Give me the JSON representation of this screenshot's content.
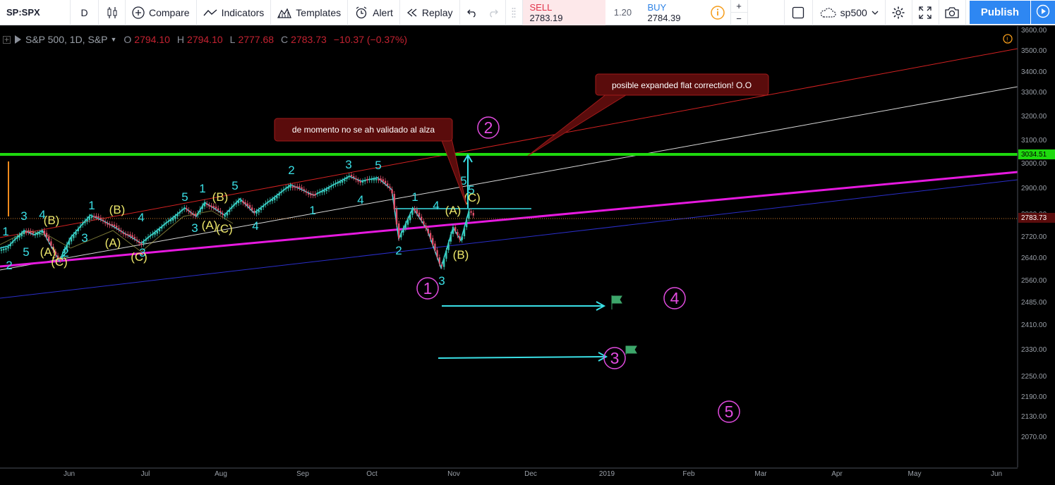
{
  "toolbar": {
    "symbol": "SP:SPX",
    "interval": "D",
    "compare_label": "Compare",
    "indicators_label": "Indicators",
    "templates_label": "Templates",
    "alert_label": "Alert",
    "replay_label": "Replay",
    "sell_label": "SELL",
    "sell_price": "2783.19",
    "spread": "1.20",
    "buy_label": "BUY",
    "buy_price": "2784.39",
    "layout_name": "sp500",
    "publish_label": "Publish"
  },
  "legend": {
    "title": "S&P 500, 1D, S&P",
    "open_label": "O",
    "open": "2794.10",
    "high_label": "H",
    "high": "2794.10",
    "low_label": "L",
    "low": "2777.68",
    "close_label": "C",
    "close": "2783.73",
    "change": "−10.37 (−0.37%)"
  },
  "price_scale": {
    "ticks": [
      "3600.00",
      "3500.00",
      "3400.00",
      "3300.00",
      "3200.00",
      "3100.00",
      "3000.00",
      "2900.00",
      "2800.00",
      "2720.00",
      "2640.00",
      "2560.00",
      "2485.00",
      "2410.00",
      "2330.00",
      "2250.00",
      "2190.00",
      "2130.00",
      "2070.00"
    ],
    "green_level_label": "3034.51",
    "last_price_label": "2783.73"
  },
  "time_axis": {
    "labels": [
      "Jun",
      "Jul",
      "Aug",
      "Sep",
      "Oct",
      "Nov",
      "Dec",
      "2019",
      "Feb",
      "Mar",
      "Apr",
      "May",
      "Jun"
    ]
  },
  "annotations": {
    "callout_upper": "posible expanded flat correction! O.O",
    "callout_lower": "de momento no se ah validado al alza"
  },
  "wave_labels": {
    "cyan": [
      "1",
      "3",
      "5",
      "4",
      "2",
      "2",
      "3",
      "1",
      "4",
      "3",
      "5",
      "1",
      "3",
      "5",
      "4",
      "2",
      "1",
      "3",
      "4",
      "5",
      "1",
      "2",
      "3",
      "5",
      "5",
      "4"
    ],
    "yellow": [
      "(B)",
      "(A)",
      "(C)",
      "(B)",
      "(A)",
      "(C)",
      "(B)",
      "(A)",
      "(C)",
      "(A)",
      "(C)",
      "(B)"
    ],
    "circled": [
      "1",
      "2",
      "3",
      "4",
      "5"
    ]
  },
  "colors": {
    "background": "#000000",
    "green_line": "#1ed90e",
    "magenta_line": "#e619df",
    "red_channel": "#d22121",
    "blue_channel": "#2a2ec9",
    "cyan_wave": "#3ae0e6",
    "yellow_wave": "#ece66a",
    "circled_wave": "#e24be0",
    "callout_bg": "#5a0c0c",
    "publish_bg": "#2e87f2"
  }
}
